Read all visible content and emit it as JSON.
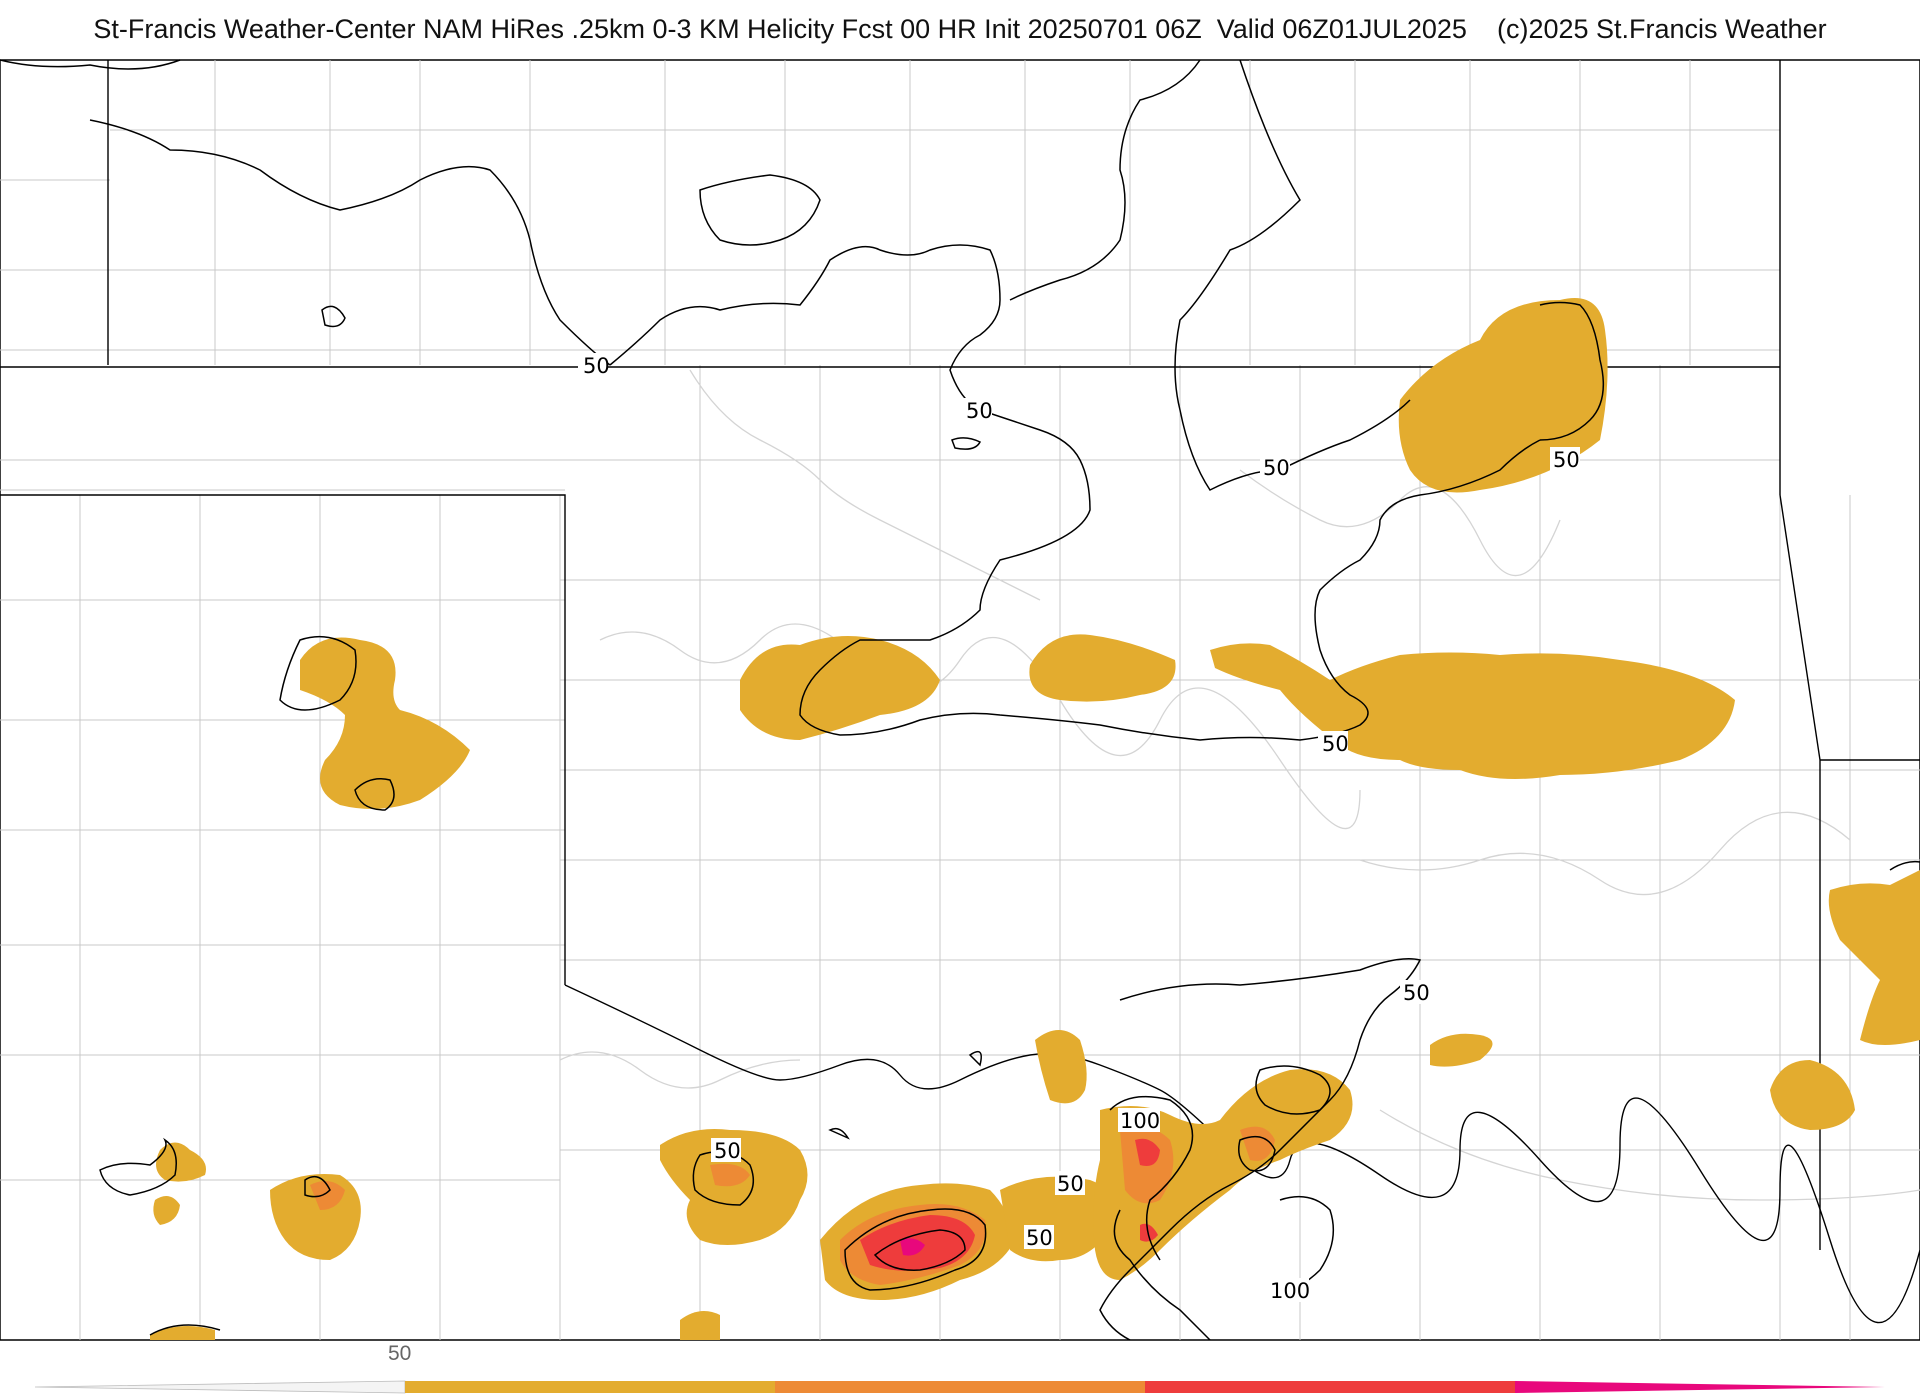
{
  "header": {
    "title": "St-Francis Weather-Center NAM HiRes .25km 0-3 KM Helicity Fcst 00 HR Init 20250701 06Z  Valid 06Z01JUL2025    (c)2025 St.Francis Weather"
  },
  "colorbar": {
    "tick_label": "50",
    "colors": [
      "#e3ac2f",
      "#ed8a35",
      "#ee3c3c",
      "#e8087c"
    ]
  },
  "contour_labels": [
    "50",
    "50",
    "50",
    "50",
    "50",
    "50",
    "50",
    "50",
    "50",
    "100",
    "100"
  ],
  "fill_colors": {
    "low": "#e3ac2f",
    "mid": "#ed8a35",
    "high": "#ee3c3c",
    "extreme": "#e8087c"
  }
}
